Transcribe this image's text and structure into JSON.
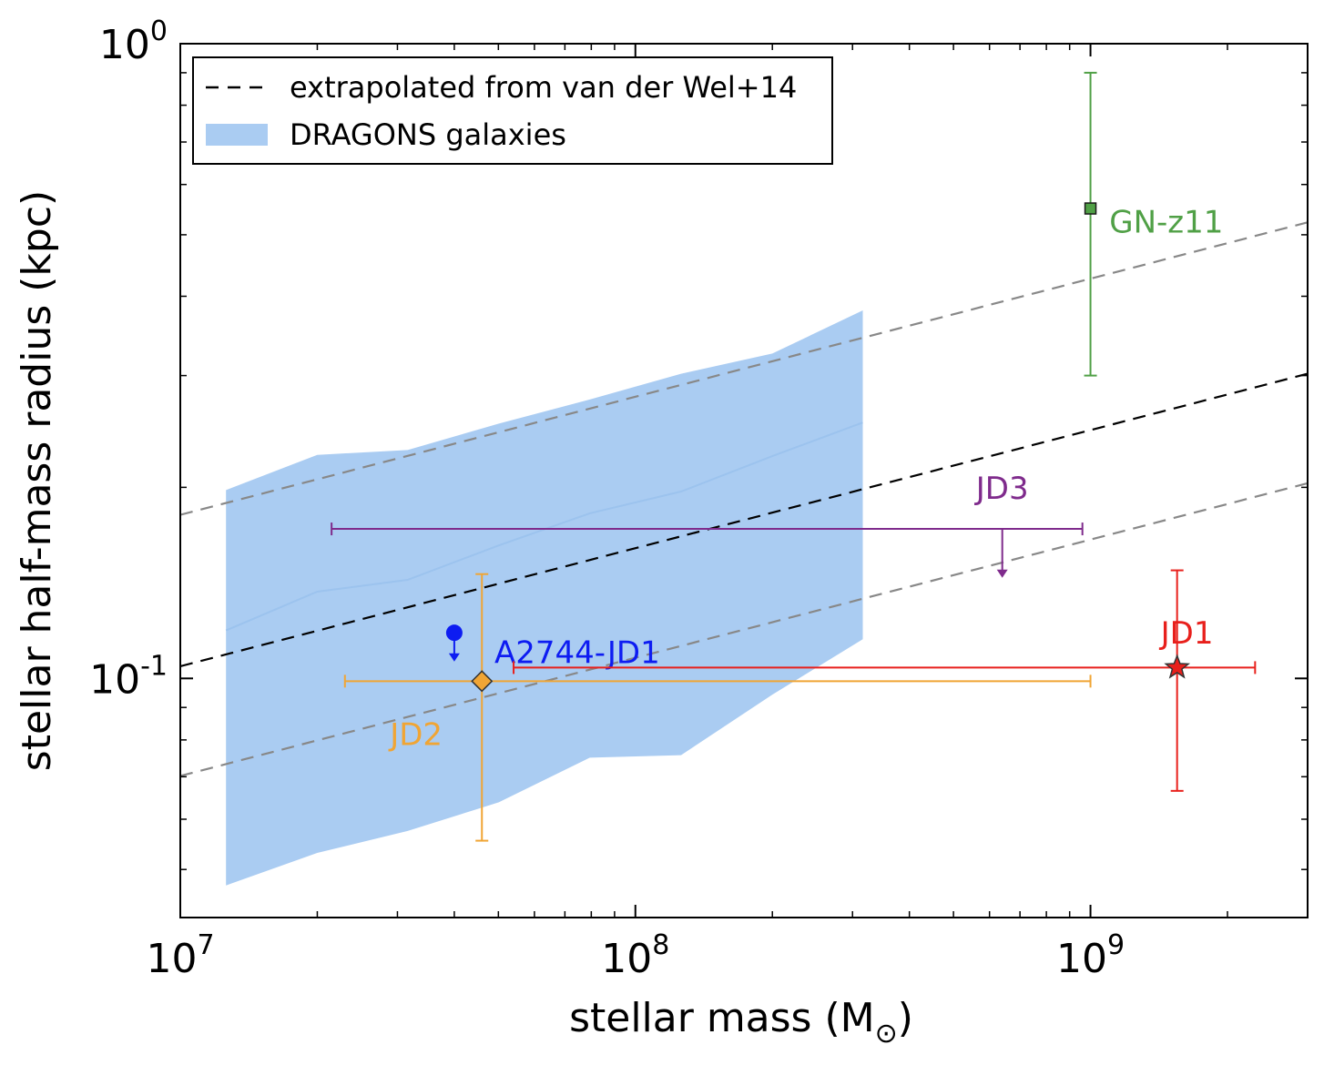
{
  "chart_data": {
    "type": "scatter",
    "xlabel": "stellar mass (M",
    "xlabel_symbol": "⊙",
    "xlabel_close": ")",
    "ylabel": "stellar half-mass radius (kpc)",
    "xscale": "log",
    "yscale": "log",
    "xlim": [
      10000000,
      3000000000
    ],
    "ylim": [
      0.042,
      1.0
    ],
    "xticks": [
      {
        "value": 10000000,
        "base": "10",
        "exp": "7"
      },
      {
        "value": 100000000,
        "base": "10",
        "exp": "8"
      },
      {
        "value": 1000000000,
        "base": "10",
        "exp": "9"
      }
    ],
    "yticks": [
      {
        "value": 0.1,
        "base": "10",
        "exp": "-1"
      },
      {
        "value": 1.0,
        "base": "10",
        "exp": "0"
      }
    ],
    "legend": {
      "position": "top-left",
      "entries": [
        {
          "label": "extrapolated from van der Wel+14",
          "style": "dashed-line",
          "color": "#000000"
        },
        {
          "label": "DRAGONS galaxies",
          "style": "filled-band",
          "color": "#aaccf2"
        }
      ]
    },
    "relations": [
      {
        "name": "van der Wel+14 extrapolation",
        "color": "#000000",
        "x": [
          10000000,
          3000000000
        ],
        "y": [
          0.1045,
          0.302
        ]
      },
      {
        "name": "upper scatter",
        "color": "#888888",
        "x": [
          10000000,
          3000000000
        ],
        "y": [
          0.181,
          0.523
        ]
      },
      {
        "name": "lower scatter",
        "color": "#888888",
        "x": [
          10000000,
          3000000000
        ],
        "y": [
          0.0702,
          0.203
        ]
      }
    ],
    "dragons": {
      "color": "#aaccf2",
      "median_color": "#9cc3ee",
      "x": [
        12600000,
        20000000,
        31600000,
        50100000,
        79400000,
        126000000,
        200000000,
        316000000
      ],
      "median": [
        0.119,
        0.137,
        0.143,
        0.162,
        0.182,
        0.197,
        0.224,
        0.253
      ],
      "upper": [
        0.198,
        0.225,
        0.229,
        0.252,
        0.275,
        0.302,
        0.325,
        0.38
      ],
      "lower": [
        0.0472,
        0.0531,
        0.0575,
        0.0638,
        0.075,
        0.0757,
        0.0943,
        0.1153
      ]
    },
    "points": [
      {
        "name": "GN-z11",
        "label": "GN-z11",
        "color": "#50a046",
        "marker": "square",
        "x": 1000000000,
        "y": 0.55,
        "yerr": [
          0.3,
          0.9
        ],
        "label_x": 1100000000,
        "label_y": 0.52,
        "label_anchor": "start"
      },
      {
        "name": "JD3",
        "label": "JD3",
        "color": "#7f2b8c",
        "marker": "upper-limit",
        "x": 640000000,
        "y": 0.172,
        "xerr": [
          21500000,
          960000000
        ],
        "limit_to": 0.145,
        "label_x": 640000000,
        "label_y": 0.198,
        "label_anchor": "middle"
      },
      {
        "name": "A2744-JD1",
        "label": "A2744-JD1",
        "color": "#0d1cf2",
        "marker": "circle-upper-limit",
        "x": 40000000,
        "y": 0.118,
        "limit_to": 0.107,
        "label_x": 49000000,
        "label_y": 0.109,
        "label_anchor": "start"
      },
      {
        "name": "JD2",
        "label": "JD2",
        "color": "#f0a535",
        "marker": "diamond",
        "x": 46000000,
        "y": 0.099,
        "xerr": [
          23000000,
          1000000000
        ],
        "yerr": [
          0.0555,
          0.146
        ],
        "label_x": 33000000,
        "label_y": 0.081,
        "label_anchor": "middle"
      },
      {
        "name": "JD1",
        "label": "JD1",
        "color": "#e8201c",
        "marker": "star",
        "x": 1550000000,
        "y": 0.104,
        "xerr": [
          54000000,
          2300000000
        ],
        "yerr": [
          0.0665,
          0.148
        ],
        "label_x": 1630000000,
        "label_y": 0.117,
        "label_anchor": "middle"
      }
    ]
  }
}
